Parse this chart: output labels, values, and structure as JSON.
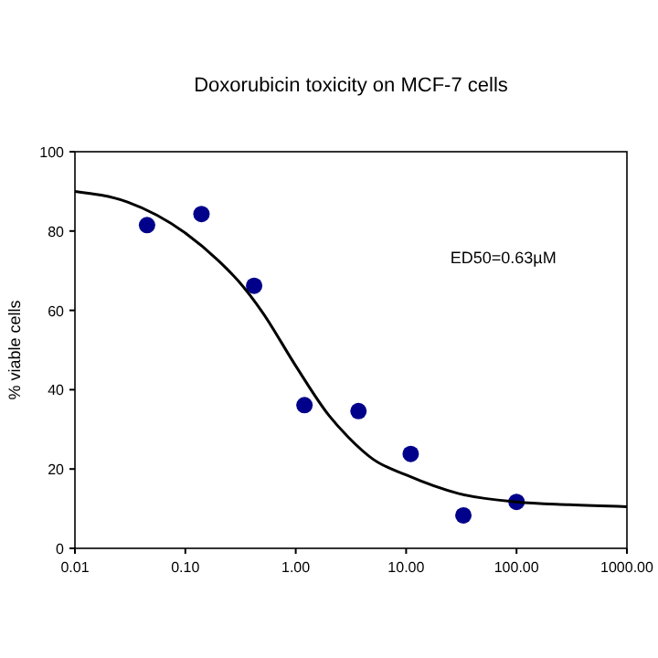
{
  "chart_data": {
    "type": "scatter",
    "title": "Doxorubicin toxicity on MCF-7 cells",
    "ylabel": "% viable cells",
    "annotations": [
      "ED50=0.63µM"
    ],
    "log": "x",
    "grid": false,
    "marker": "circle",
    "xlim": [
      0.01,
      1000
    ],
    "ylim": [
      0,
      100
    ],
    "xticks": [
      {
        "value": 0.01,
        "label": "0.01"
      },
      {
        "value": 0.1,
        "label": "0.10"
      },
      {
        "value": 1,
        "label": "1.00"
      },
      {
        "value": 10,
        "label": "10.00"
      },
      {
        "value": 100,
        "label": "100.00"
      },
      {
        "value": 1000,
        "label": "1000.00"
      }
    ],
    "yticks": [
      0,
      20,
      40,
      60,
      80,
      100
    ],
    "series": [
      {
        "color": "#00008b",
        "x": [
          0.045,
          0.14,
          0.42,
          1.2,
          3.7,
          11,
          33,
          100
        ],
        "values": [
          81.5,
          84.3,
          66.2,
          36.1,
          34.6,
          23.8,
          8.3,
          11.7
        ]
      },
      {
        "type": "line",
        "color": "#000000",
        "line_style": "solid",
        "marker": "none",
        "x": [
          0.01,
          0.03,
          0.1,
          0.2,
          0.3,
          0.5,
          1,
          2,
          3,
          5,
          10,
          30,
          100,
          300,
          1000
        ],
        "values": [
          90,
          87.3,
          79.5,
          72.5,
          67.5,
          59.5,
          46,
          33.5,
          28,
          22.5,
          18.5,
          13.8,
          11.7,
          11,
          10.5
        ]
      }
    ]
  }
}
